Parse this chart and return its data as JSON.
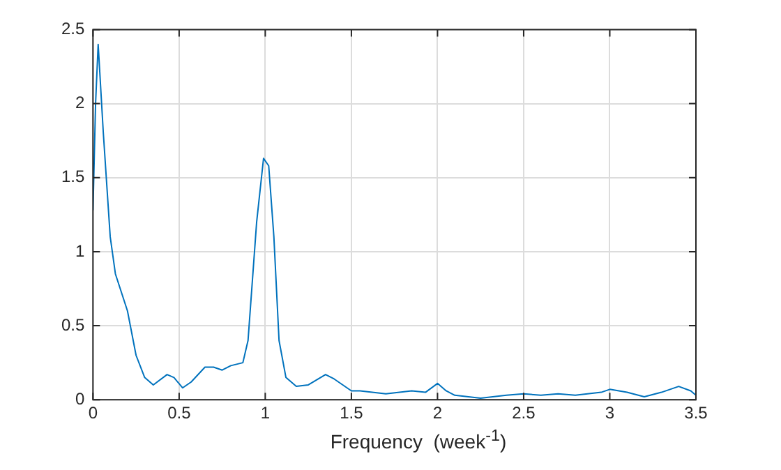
{
  "chart_data": {
    "type": "line",
    "xlabel": "Frequency  (week$^{-1}$)",
    "x": [
      0,
      0.015,
      0.03,
      0.06,
      0.1,
      0.13,
      0.2,
      0.25,
      0.3,
      0.35,
      0.43,
      0.47,
      0.52,
      0.57,
      0.65,
      0.7,
      0.75,
      0.8,
      0.87,
      0.9,
      0.95,
      0.99,
      1.02,
      1.05,
      1.08,
      1.12,
      1.18,
      1.25,
      1.35,
      1.4,
      1.5,
      1.55,
      1.7,
      1.85,
      1.93,
      2.0,
      2.05,
      2.1,
      2.25,
      2.4,
      2.5,
      2.6,
      2.7,
      2.8,
      2.95,
      3.0,
      3.1,
      3.2,
      3.3,
      3.4,
      3.47,
      3.5
    ],
    "series": [
      {
        "color": "#0072bd",
        "values": [
          1.28,
          2.0,
          2.4,
          1.8,
          1.1,
          0.85,
          0.6,
          0.3,
          0.15,
          0.1,
          0.17,
          0.15,
          0.08,
          0.12,
          0.22,
          0.22,
          0.2,
          0.23,
          0.25,
          0.4,
          1.2,
          1.63,
          1.58,
          1.1,
          0.4,
          0.15,
          0.09,
          0.1,
          0.17,
          0.14,
          0.06,
          0.06,
          0.04,
          0.06,
          0.05,
          0.11,
          0.06,
          0.03,
          0.01,
          0.03,
          0.04,
          0.03,
          0.04,
          0.03,
          0.05,
          0.07,
          0.05,
          0.02,
          0.05,
          0.09,
          0.06,
          0.03
        ]
      }
    ],
    "xlim": [
      0,
      3.5
    ],
    "xticks": [
      0,
      0.5,
      1,
      1.5,
      2,
      2.5,
      3,
      3.5
    ],
    "ylim": [
      0,
      2.5
    ],
    "yticks": [
      0,
      0.5,
      1,
      1.5,
      2,
      2.5
    ],
    "grid": true,
    "legend": false,
    "marker": "none",
    "line_style": "solid"
  }
}
